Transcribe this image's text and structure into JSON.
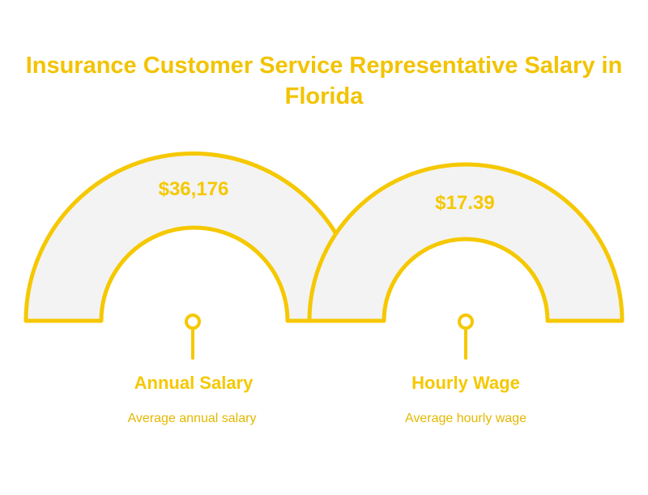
{
  "title": "Insurance Customer Service Representative Salary in Florida",
  "colors": {
    "accent": "#F5C800",
    "title": "#F2C300",
    "fill": "#F3F3F3",
    "description": "#E3B800"
  },
  "items": [
    {
      "value": "$36,176",
      "label": "Annual Salary",
      "description": "Average annual salary"
    },
    {
      "value": "$17.39",
      "label": "Hourly Wage",
      "description": "Average hourly wage"
    }
  ]
}
